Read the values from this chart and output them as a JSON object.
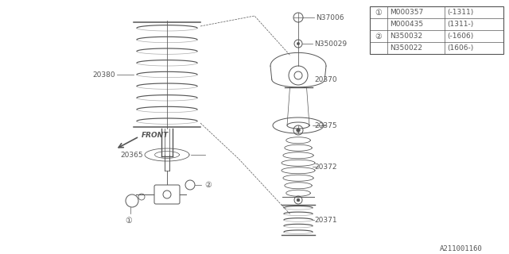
{
  "bg_color": "#ffffff",
  "line_color": "#555555",
  "line_width": 0.7,
  "fig_width": 6.4,
  "fig_height": 3.2,
  "dpi": 100,
  "watermark": "A211001160",
  "legend_rows": [
    [
      "①",
      "M000357",
      "(-1311)"
    ],
    [
      "",
      "M000435",
      "(1311-)"
    ],
    [
      "②",
      "N350032",
      "(-1606)"
    ],
    [
      "",
      "N350022",
      "(1606-)"
    ]
  ]
}
